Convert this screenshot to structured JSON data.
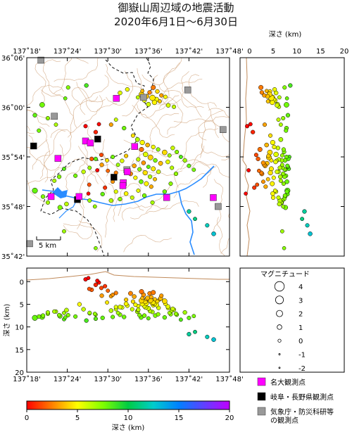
{
  "title": {
    "line1": "御嶽山周辺域の地震活動",
    "line2": "2020年6月1日～6月30日"
  },
  "map": {
    "lon_ticks": [
      "137˚18'",
      "137˚24'",
      "137˚30'",
      "137˚36'",
      "137˚42'",
      "137˚48'"
    ],
    "lat_ticks": [
      "36˚06'",
      "36˚00'",
      "35˚54'",
      "35˚48'",
      "35˚42'"
    ],
    "scale_label": "5 km",
    "lon_range": [
      137.3,
      137.8
    ],
    "lat_range": [
      35.7,
      36.1
    ]
  },
  "depth_section_right": {
    "title": "深さ (km)",
    "ticks": [
      "0",
      "5",
      "10",
      "15",
      "20"
    ],
    "range": [
      -2,
      20
    ]
  },
  "depth_section_bottom": {
    "ylabel": "深さ (km)",
    "ticks": [
      "0",
      "5",
      "10",
      "15",
      "20"
    ],
    "range": [
      -3,
      20
    ],
    "lon_ticks": [
      "137˚18'",
      "137˚24'",
      "137˚30'",
      "137˚36'",
      "137˚42'",
      "137˚48'"
    ]
  },
  "legend": {
    "title": "マグニチュード",
    "magnitudes": [
      "4",
      "3",
      "2",
      "1",
      "0",
      "-1",
      "-2"
    ],
    "stations": [
      {
        "label": "名大観測点",
        "color": "#ff00ff"
      },
      {
        "label": "岐阜・長野県観測点",
        "color": "#000000"
      },
      {
        "label": "気象庁・防災科研等",
        "label2": "の観測点",
        "color": "#999999"
      }
    ]
  },
  "colorbar": {
    "label": "深さ (km)",
    "ticks": [
      "0",
      "5",
      "10",
      "15",
      "20"
    ],
    "colors": [
      "#ff0000",
      "#ff8000",
      "#ffff00",
      "#80ff00",
      "#00cc44",
      "#00cccc",
      "#0080ff",
      "#6040ff",
      "#c000ff"
    ]
  },
  "stations": {
    "nagoya_u": [
      [
        137.521,
        36.018
      ],
      [
        137.445,
        35.932
      ],
      [
        137.457,
        35.928
      ],
      [
        137.566,
        35.921
      ],
      [
        137.377,
        35.897
      ],
      [
        137.548,
        35.87
      ],
      [
        137.538,
        35.848
      ],
      [
        137.537,
        35.842
      ],
      [
        137.36,
        35.82
      ],
      [
        137.429,
        35.82
      ],
      [
        137.645,
        35.818
      ],
      [
        137.76,
        35.818
      ]
    ],
    "pref": [
      [
        137.317,
        35.922
      ],
      [
        137.475,
        35.936
      ],
      [
        137.515,
        35.859
      ],
      [
        137.425,
        35.814
      ]
    ],
    "jma_nied": [
      [
        137.335,
        36.095
      ],
      [
        137.368,
        35.982
      ],
      [
        137.588,
        36.02
      ],
      [
        137.697,
        36.035
      ],
      [
        137.784,
        35.955
      ],
      [
        137.547,
        35.874
      ],
      [
        137.772,
        35.8
      ],
      [
        137.307,
        35.725
      ]
    ]
  },
  "chart_data": {
    "type": "scatter",
    "description_fields": [
      "lon",
      "lat",
      "depth_km",
      "magnitude"
    ],
    "events": [
      [
        137.583,
        36.026,
        4.2,
        1.3
      ],
      [
        137.596,
        36.022,
        3.8,
        0.8
      ],
      [
        137.61,
        36.019,
        4.6,
        1.6
      ],
      [
        137.62,
        36.016,
        5.1,
        0.9
      ],
      [
        137.628,
        36.012,
        3.9,
        0.4
      ],
      [
        137.603,
        36.03,
        2.6,
        0.6
      ],
      [
        137.59,
        36.014,
        5.4,
        0.7
      ],
      [
        137.615,
        36.01,
        4.8,
        1.1
      ],
      [
        137.632,
        36.024,
        3.1,
        0.5
      ],
      [
        137.574,
        36.02,
        6.3,
        0.4
      ],
      [
        137.6,
        36.006,
        5.9,
        0.8
      ],
      [
        137.622,
        36.032,
        4.3,
        0.6
      ],
      [
        137.642,
        36.021,
        4.9,
        0.5
      ],
      [
        137.585,
        36.033,
        3.6,
        0.3
      ],
      [
        137.612,
        36.04,
        2.4,
        0.9
      ],
      [
        137.447,
        36.044,
        8.6,
        0.6
      ],
      [
        137.402,
        36.04,
        7.4,
        0.5
      ],
      [
        137.53,
        36.029,
        5.6,
        0.7
      ],
      [
        137.548,
        36.036,
        5.3,
        0.6
      ],
      [
        137.395,
        36.018,
        7.9,
        0.3
      ],
      [
        137.663,
        36.001,
        6.2,
        0.5
      ],
      [
        137.649,
        36.004,
        5.8,
        0.7
      ],
      [
        137.338,
        36.005,
        7.8,
        1.2
      ],
      [
        137.32,
        35.984,
        8.1,
        0.6
      ],
      [
        137.352,
        35.978,
        7.1,
        0.5
      ],
      [
        137.372,
        35.965,
        6.6,
        0.4
      ],
      [
        137.33,
        35.953,
        7.7,
        0.5
      ],
      [
        137.52,
        35.975,
        6.1,
        0.4
      ],
      [
        137.508,
        35.965,
        3.2,
        0.5
      ],
      [
        137.54,
        35.958,
        7.8,
        0.6
      ],
      [
        137.562,
        35.943,
        4.4,
        0.5
      ],
      [
        137.573,
        35.935,
        6.6,
        0.8
      ],
      [
        137.585,
        35.929,
        4.9,
        1.0
      ],
      [
        137.598,
        35.924,
        3.6,
        0.7
      ],
      [
        137.612,
        35.92,
        5.2,
        0.6
      ],
      [
        137.624,
        35.915,
        7.2,
        0.5
      ],
      [
        137.64,
        35.909,
        4.3,
        1.2
      ],
      [
        137.652,
        35.903,
        6.9,
        0.4
      ],
      [
        137.583,
        35.915,
        2.2,
        0.9
      ],
      [
        137.593,
        35.905,
        5.6,
        1.1
      ],
      [
        137.605,
        35.899,
        4.1,
        1.3
      ],
      [
        137.617,
        35.893,
        7.5,
        0.6
      ],
      [
        137.63,
        35.887,
        3.7,
        0.8
      ],
      [
        137.575,
        35.895,
        6.2,
        0.5
      ],
      [
        137.588,
        35.888,
        2.9,
        0.7
      ],
      [
        137.6,
        35.88,
        8.1,
        0.4
      ],
      [
        137.612,
        35.876,
        4.6,
        0.9
      ],
      [
        137.625,
        35.87,
        5.8,
        0.6
      ],
      [
        137.565,
        35.882,
        3.3,
        0.7
      ],
      [
        137.578,
        35.875,
        7.4,
        0.5
      ],
      [
        137.592,
        35.868,
        4.4,
        1.0
      ],
      [
        137.604,
        35.86,
        6.5,
        0.6
      ],
      [
        137.616,
        35.855,
        3.9,
        0.4
      ],
      [
        137.556,
        35.866,
        2.6,
        0.8
      ],
      [
        137.568,
        35.858,
        5.1,
        0.5
      ],
      [
        137.582,
        35.85,
        7.9,
        0.7
      ],
      [
        137.595,
        35.846,
        4.8,
        0.9
      ],
      [
        137.607,
        35.84,
        3.4,
        0.5
      ],
      [
        137.66,
        35.918,
        6.0,
        0.6
      ],
      [
        137.67,
        35.91,
        7.3,
        0.5
      ],
      [
        137.68,
        35.9,
        8.4,
        0.4
      ],
      [
        137.69,
        35.893,
        6.8,
        0.6
      ],
      [
        137.7,
        35.882,
        8.0,
        0.5
      ],
      [
        137.712,
        35.874,
        7.6,
        0.4
      ],
      [
        137.648,
        35.89,
        5.5,
        0.7
      ],
      [
        137.658,
        35.878,
        6.4,
        0.5
      ],
      [
        137.668,
        35.866,
        7.1,
        0.6
      ],
      [
        137.545,
        35.902,
        4.0,
        0.5
      ],
      [
        137.535,
        35.892,
        5.7,
        0.6
      ],
      [
        137.525,
        35.884,
        6.9,
        0.4
      ],
      [
        137.512,
        35.9,
        7.8,
        0.5
      ],
      [
        137.498,
        35.893,
        4.6,
        0.4
      ],
      [
        137.485,
        35.884,
        3.1,
        0.6
      ],
      [
        137.47,
        35.896,
        8.2,
        0.5
      ],
      [
        137.455,
        35.878,
        7.0,
        0.4
      ],
      [
        137.44,
        35.87,
        6.1,
        0.6
      ],
      [
        137.42,
        35.862,
        7.7,
        0.5
      ],
      [
        137.392,
        35.876,
        8.3,
        0.4
      ],
      [
        137.38,
        35.86,
        7.4,
        0.6
      ],
      [
        137.368,
        35.852,
        6.6,
        0.5
      ],
      [
        137.32,
        35.832,
        8.0,
        1.4
      ],
      [
        137.34,
        35.82,
        7.5,
        0.6
      ],
      [
        137.352,
        35.808,
        6.8,
        0.5
      ],
      [
        137.382,
        35.798,
        7.6,
        0.9
      ],
      [
        137.398,
        35.805,
        6.3,
        0.7
      ],
      [
        137.43,
        35.818,
        5.0,
        0.6
      ],
      [
        137.455,
        35.812,
        6.9,
        0.5
      ],
      [
        137.468,
        35.8,
        7.1,
        0.4
      ],
      [
        137.487,
        35.825,
        8.0,
        0.6
      ],
      [
        137.508,
        35.812,
        6.4,
        0.7
      ],
      [
        137.52,
        35.83,
        5.6,
        0.5
      ],
      [
        137.53,
        35.815,
        7.3,
        0.6
      ],
      [
        137.545,
        35.826,
        4.9,
        0.7
      ],
      [
        137.56,
        35.818,
        6.1,
        0.5
      ],
      [
        137.575,
        35.832,
        5.4,
        0.4
      ],
      [
        137.59,
        35.822,
        7.5,
        0.6
      ],
      [
        137.61,
        35.808,
        6.7,
        0.5
      ],
      [
        137.64,
        35.83,
        7.9,
        0.6
      ],
      [
        137.655,
        35.846,
        7.2,
        0.5
      ],
      [
        137.7,
        35.79,
        11.6,
        0.6
      ],
      [
        137.715,
        35.775,
        11.1,
        0.4
      ],
      [
        137.745,
        35.762,
        12.2,
        0.5
      ],
      [
        137.761,
        35.745,
        12.8,
        0.7
      ],
      [
        137.47,
        35.716,
        7.3,
        0.3
      ],
      [
        137.392,
        35.75,
        6.9,
        0.4
      ],
      [
        137.47,
        35.95,
        0.7,
        0.6
      ],
      [
        137.445,
        35.962,
        -0.5,
        0.5
      ],
      [
        137.478,
        35.966,
        0.2,
        0.4
      ],
      [
        137.46,
        35.896,
        1.8,
        0.6
      ],
      [
        137.484,
        35.904,
        1.4,
        0.5
      ],
      [
        137.474,
        35.873,
        -0.2,
        0.4
      ],
      [
        137.5,
        35.872,
        2.0,
        0.4
      ],
      [
        137.493,
        35.838,
        1.0,
        0.5
      ],
      [
        137.454,
        35.844,
        1.6,
        0.4
      ],
      [
        137.452,
        35.826,
        -0.8,
        0.3
      ],
      [
        137.52,
        35.868,
        2.5,
        0.5
      ],
      [
        137.512,
        35.85,
        2.9,
        0.4
      ]
    ]
  }
}
